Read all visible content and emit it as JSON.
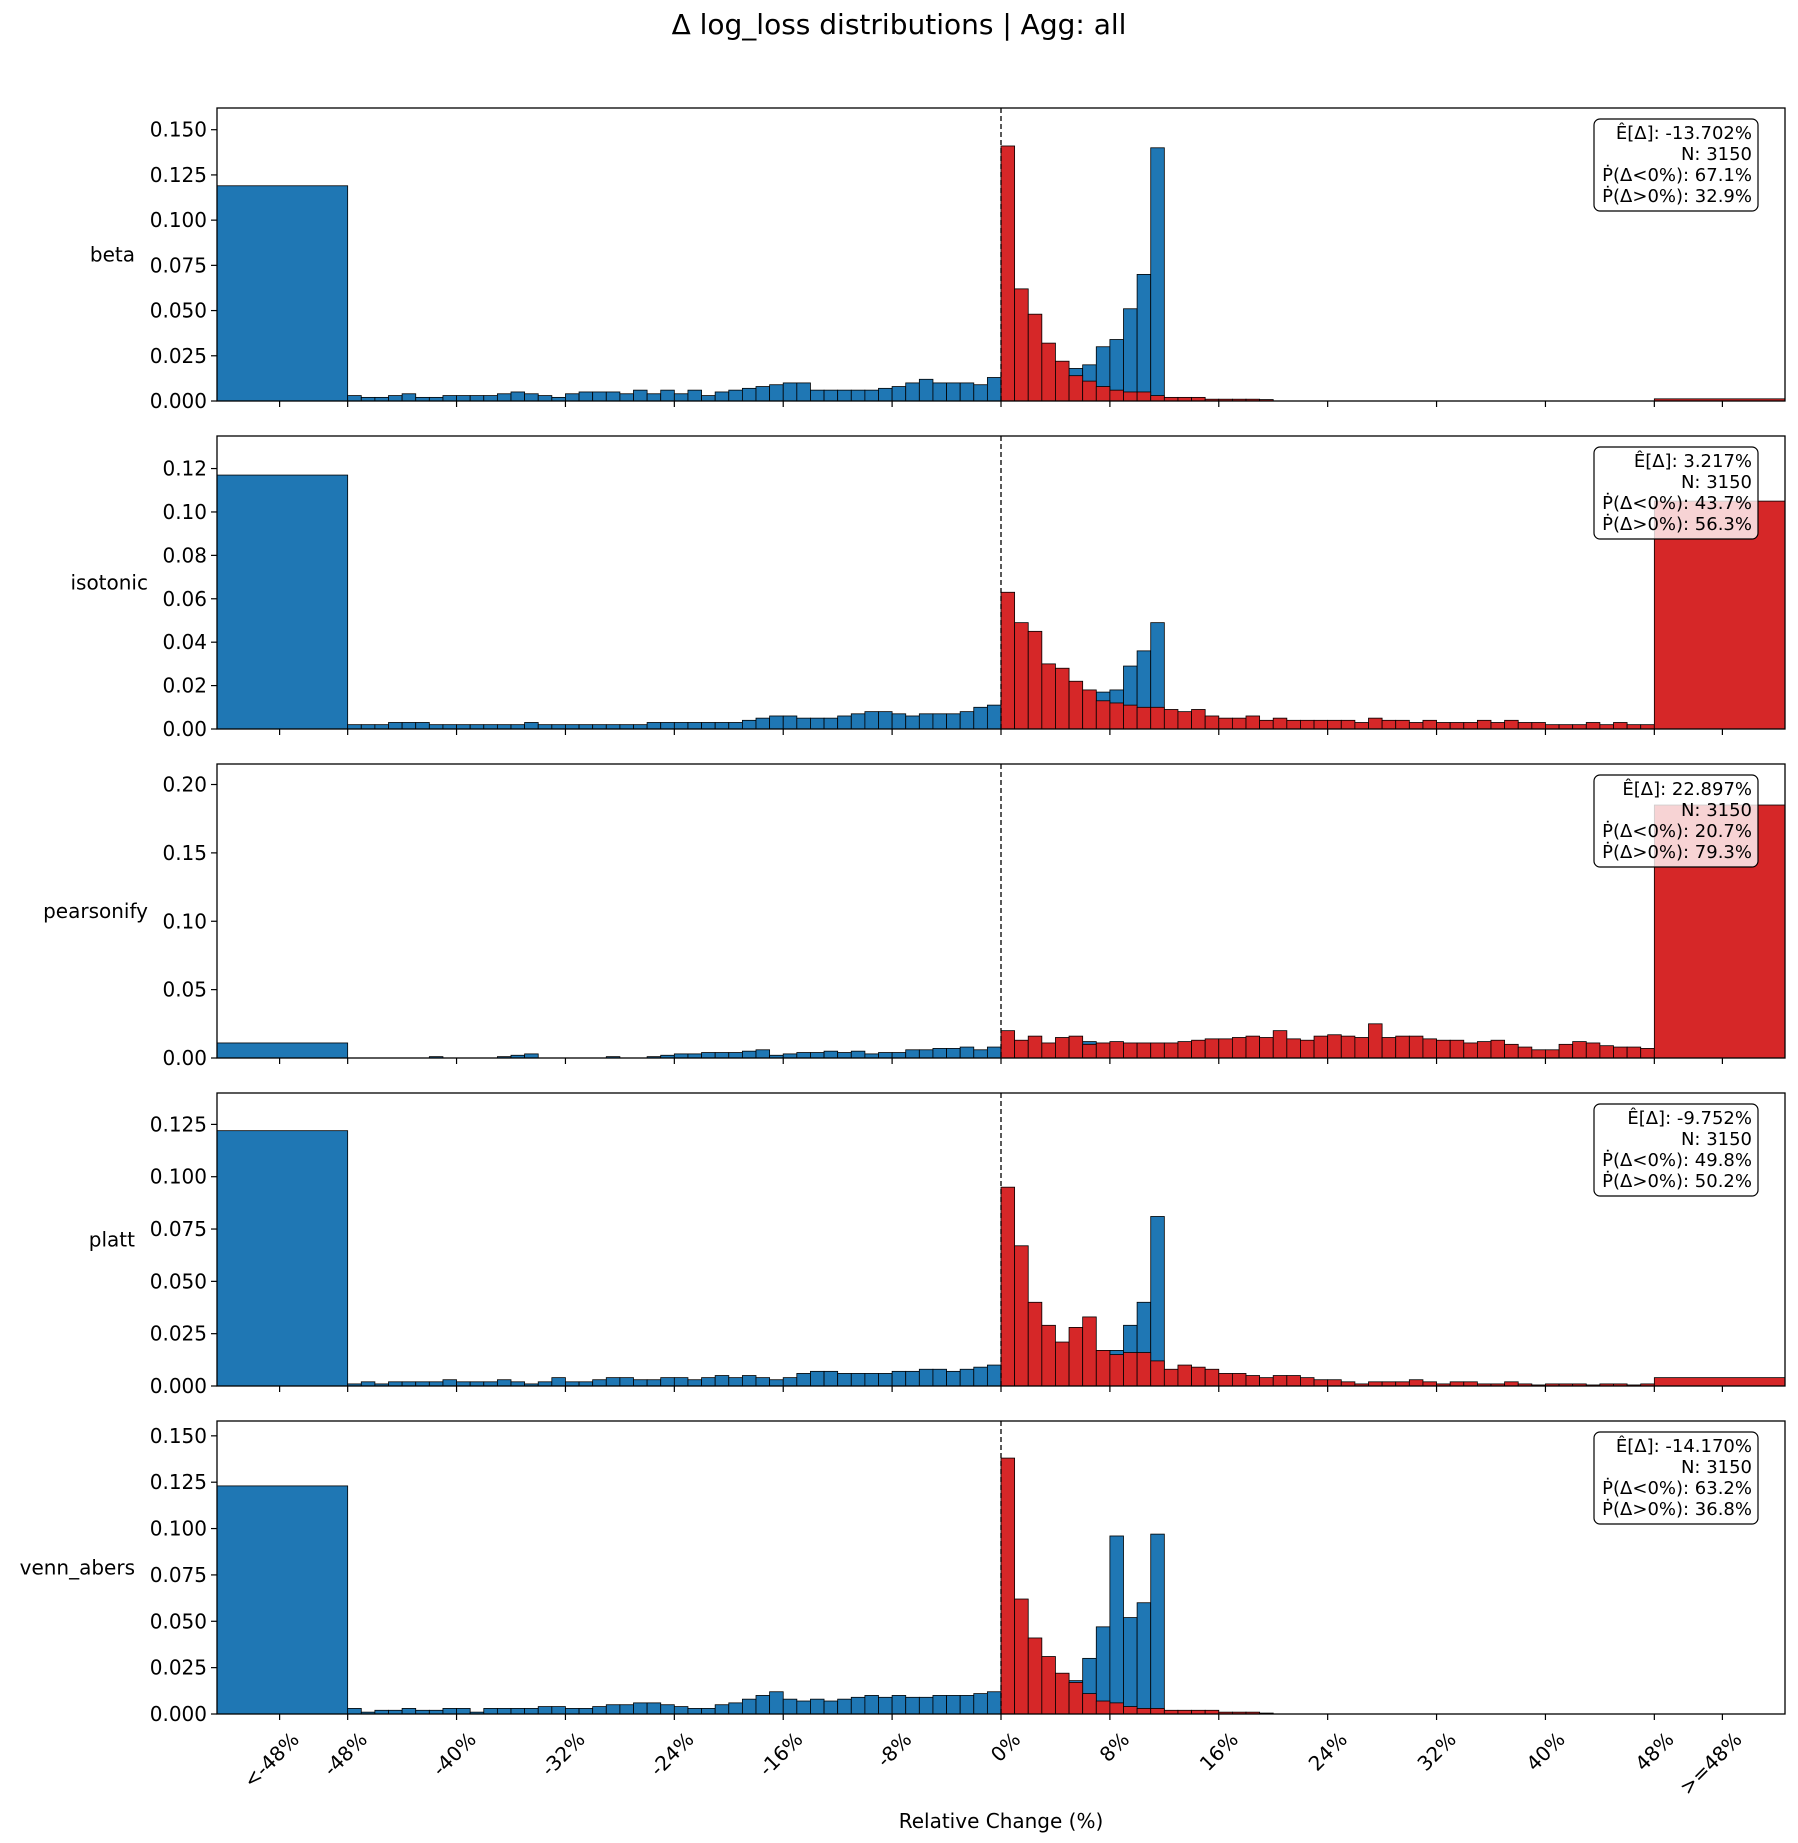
{
  "chart_data": {
    "type": "bar",
    "title": "Δ log_loss distributions | Agg: all",
    "xlabel": "Relative Change (%)",
    "x_tick_labels": [
      "<-48%",
      "-48%",
      "-40%",
      "-32%",
      "-24%",
      "-16%",
      "-8%",
      "0%",
      "8%",
      "16%",
      "24%",
      "32%",
      "40%",
      "48%",
      ">=48%"
    ],
    "x_tick_values": [
      -53,
      -48,
      -40,
      -32,
      -24,
      -16,
      -8,
      0,
      8,
      16,
      24,
      32,
      40,
      48,
      53
    ],
    "xlim": [
      -57.6,
      57.6
    ],
    "bin_width": 1,
    "bin_range": [
      -48,
      48
    ],
    "underflow_bin": [
      -57.6,
      -48
    ],
    "overflow_bin": [
      48,
      57.6
    ],
    "reference_line_x": 0,
    "colors": {
      "negative": "#1f77b4",
      "positive": "#d62728",
      "edge": "#000000"
    },
    "series": [
      {
        "name": "beta",
        "ylim": [
          0,
          0.162
        ],
        "yticks": [
          0.0,
          0.025,
          0.05,
          0.075,
          0.1,
          0.125,
          0.15
        ],
        "ytick_labels": [
          "0.000",
          "0.025",
          "0.050",
          "0.075",
          "0.100",
          "0.125",
          "0.150"
        ],
        "underflow": 0.119,
        "overflow": 0.0012,
        "neg_values": [
          0.003,
          0.002,
          0.002,
          0.003,
          0.004,
          0.002,
          0.002,
          0.003,
          0.003,
          0.003,
          0.003,
          0.004,
          0.005,
          0.004,
          0.003,
          0.002,
          0.004,
          0.005,
          0.005,
          0.005,
          0.004,
          0.006,
          0.004,
          0.006,
          0.004,
          0.006,
          0.003,
          0.005,
          0.006,
          0.007,
          0.008,
          0.009,
          0.01,
          0.01,
          0.006,
          0.006,
          0.006,
          0.006,
          0.006,
          0.007,
          0.008,
          0.01,
          0.012,
          0.01,
          0.01,
          0.01,
          0.009,
          0.013,
          0.01,
          0.016,
          0.017,
          0.017,
          0.017,
          0.018,
          0.02,
          0.03,
          0.034,
          0.051,
          0.07,
          0.14
        ],
        "pos_values": [
          0.141,
          0.062,
          0.048,
          0.032,
          0.022,
          0.014,
          0.011,
          0.008,
          0.006,
          0.005,
          0.005,
          0.003,
          0.002,
          0.002,
          0.002,
          0.001,
          0.001,
          0.001,
          0.001,
          0.0008
        ],
        "stats": {
          "mean": "Ê[Δ]: -13.702%",
          "n": "N: 3150",
          "p_neg": "Ṗ(Δ<0%): 67.1%",
          "p_pos": "Ṗ(Δ>0%): 32.9%"
        }
      },
      {
        "name": "isotonic",
        "ylim": [
          0,
          0.135
        ],
        "yticks": [
          0.0,
          0.02,
          0.04,
          0.06,
          0.08,
          0.1,
          0.12
        ],
        "ytick_labels": [
          "0.00",
          "0.02",
          "0.04",
          "0.06",
          "0.08",
          "0.10",
          "0.12"
        ],
        "underflow": 0.117,
        "overflow": 0.105,
        "neg_values": [
          0.002,
          0.002,
          0.002,
          0.003,
          0.003,
          0.003,
          0.002,
          0.002,
          0.002,
          0.002,
          0.002,
          0.002,
          0.002,
          0.003,
          0.002,
          0.002,
          0.002,
          0.002,
          0.002,
          0.002,
          0.002,
          0.002,
          0.003,
          0.003,
          0.003,
          0.003,
          0.003,
          0.003,
          0.003,
          0.004,
          0.005,
          0.006,
          0.006,
          0.005,
          0.005,
          0.005,
          0.006,
          0.007,
          0.008,
          0.008,
          0.007,
          0.006,
          0.007,
          0.007,
          0.007,
          0.008,
          0.01,
          0.011,
          0.009,
          0.01,
          0.012,
          0.013,
          0.014,
          0.014,
          0.016,
          0.017,
          0.018,
          0.029,
          0.036,
          0.049
        ],
        "pos_values": [
          0.063,
          0.049,
          0.045,
          0.03,
          0.028,
          0.022,
          0.018,
          0.013,
          0.012,
          0.011,
          0.01,
          0.01,
          0.009,
          0.008,
          0.009,
          0.006,
          0.005,
          0.005,
          0.006,
          0.004,
          0.005,
          0.004,
          0.004,
          0.004,
          0.004,
          0.004,
          0.003,
          0.005,
          0.004,
          0.004,
          0.003,
          0.004,
          0.003,
          0.003,
          0.003,
          0.004,
          0.003,
          0.004,
          0.003,
          0.003,
          0.002,
          0.002,
          0.002,
          0.003,
          0.002,
          0.003,
          0.002,
          0.002,
          0.002,
          0.002
        ],
        "stats": {
          "mean": "Ê[Δ]: 3.217%",
          "n": "N: 3150",
          "p_neg": "Ṗ(Δ<0%): 43.7%",
          "p_pos": "Ṗ(Δ>0%): 56.3%"
        }
      },
      {
        "name": "pearsonify",
        "ylim": [
          0,
          0.215
        ],
        "yticks": [
          0.0,
          0.05,
          0.1,
          0.15,
          0.2
        ],
        "ytick_labels": [
          "0.00",
          "0.05",
          "0.10",
          "0.15",
          "0.20"
        ],
        "underflow": 0.011,
        "overflow": 0.185,
        "neg_values": [
          0,
          0,
          0,
          0,
          0,
          0,
          0.001,
          0,
          0,
          0,
          0,
          0.001,
          0.002,
          0.003,
          0,
          0,
          0,
          0,
          0,
          0.001,
          0,
          0,
          0.001,
          0.002,
          0.003,
          0.003,
          0.004,
          0.004,
          0.004,
          0.005,
          0.006,
          0.002,
          0.003,
          0.004,
          0.004,
          0.005,
          0.004,
          0.005,
          0.003,
          0.004,
          0.004,
          0.006,
          0.006,
          0.007,
          0.007,
          0.008,
          0.006,
          0.008,
          0.008,
          0.009,
          0.008,
          0.007,
          0.006,
          0.008,
          0.012,
          0.007,
          0.008,
          0.008,
          0.01,
          0.01
        ],
        "pos_values": [
          0.02,
          0.013,
          0.016,
          0.011,
          0.015,
          0.016,
          0.01,
          0.011,
          0.012,
          0.011,
          0.011,
          0.011,
          0.011,
          0.012,
          0.013,
          0.014,
          0.014,
          0.015,
          0.016,
          0.015,
          0.02,
          0.014,
          0.013,
          0.016,
          0.017,
          0.016,
          0.015,
          0.025,
          0.015,
          0.016,
          0.016,
          0.014,
          0.013,
          0.013,
          0.011,
          0.012,
          0.013,
          0.01,
          0.008,
          0.006,
          0.006,
          0.01,
          0.012,
          0.011,
          0.009,
          0.008,
          0.008,
          0.007,
          0.007,
          0.009
        ],
        "stats": {
          "mean": "Ê[Δ]: 22.897%",
          "n": "N: 3150",
          "p_neg": "Ṗ(Δ<0%): 20.7%",
          "p_pos": "Ṗ(Δ>0%): 79.3%"
        }
      },
      {
        "name": "platt",
        "ylim": [
          0,
          0.14
        ],
        "yticks": [
          0.0,
          0.025,
          0.05,
          0.075,
          0.1,
          0.125
        ],
        "ytick_labels": [
          "0.000",
          "0.025",
          "0.050",
          "0.075",
          "0.100",
          "0.125"
        ],
        "underflow": 0.122,
        "overflow": 0.004,
        "neg_values": [
          0.001,
          0.002,
          0.001,
          0.002,
          0.002,
          0.002,
          0.002,
          0.003,
          0.002,
          0.002,
          0.002,
          0.003,
          0.002,
          0.001,
          0.002,
          0.004,
          0.002,
          0.002,
          0.003,
          0.004,
          0.004,
          0.003,
          0.003,
          0.004,
          0.004,
          0.003,
          0.004,
          0.005,
          0.004,
          0.005,
          0.004,
          0.003,
          0.004,
          0.006,
          0.007,
          0.007,
          0.006,
          0.006,
          0.006,
          0.006,
          0.007,
          0.007,
          0.008,
          0.008,
          0.007,
          0.008,
          0.009,
          0.01,
          0.009,
          0.01,
          0.011,
          0.012,
          0.013,
          0.011,
          0.017,
          0.017,
          0.017,
          0.029,
          0.04,
          0.081
        ],
        "pos_values": [
          0.095,
          0.067,
          0.04,
          0.029,
          0.021,
          0.028,
          0.033,
          0.017,
          0.015,
          0.016,
          0.016,
          0.012,
          0.008,
          0.01,
          0.009,
          0.008,
          0.006,
          0.006,
          0.005,
          0.004,
          0.005,
          0.005,
          0.004,
          0.003,
          0.003,
          0.002,
          0.001,
          0.002,
          0.002,
          0.002,
          0.003,
          0.002,
          0.001,
          0.002,
          0.002,
          0.001,
          0.001,
          0.002,
          0.001,
          0.0005,
          0.001,
          0.001,
          0.001,
          0.0005,
          0.001,
          0.001,
          0.0005,
          0.001,
          0.0005,
          0.0005
        ],
        "stats": {
          "mean": "Ê[Δ]: -9.752%",
          "n": "N: 3150",
          "p_neg": "Ṗ(Δ<0%): 49.8%",
          "p_pos": "Ṗ(Δ>0%): 50.2%"
        }
      },
      {
        "name": "venn_abers",
        "ylim": [
          0,
          0.158
        ],
        "yticks": [
          0.0,
          0.025,
          0.05,
          0.075,
          0.1,
          0.125,
          0.15
        ],
        "ytick_labels": [
          "0.000",
          "0.025",
          "0.050",
          "0.075",
          "0.100",
          "0.125",
          "0.150"
        ],
        "underflow": 0.123,
        "overflow": 0.0,
        "neg_values": [
          0.003,
          0.001,
          0.002,
          0.002,
          0.003,
          0.002,
          0.002,
          0.003,
          0.003,
          0.001,
          0.003,
          0.003,
          0.003,
          0.003,
          0.004,
          0.004,
          0.003,
          0.003,
          0.004,
          0.005,
          0.005,
          0.006,
          0.006,
          0.005,
          0.004,
          0.003,
          0.003,
          0.005,
          0.006,
          0.008,
          0.01,
          0.012,
          0.008,
          0.007,
          0.008,
          0.007,
          0.008,
          0.009,
          0.01,
          0.009,
          0.01,
          0.009,
          0.009,
          0.01,
          0.01,
          0.01,
          0.011,
          0.012,
          0.019,
          0.015,
          0.021,
          0.022,
          0.021,
          0.018,
          0.03,
          0.047,
          0.096,
          0.052,
          0.06,
          0.097
        ],
        "pos_values": [
          0.138,
          0.062,
          0.041,
          0.031,
          0.022,
          0.017,
          0.011,
          0.007,
          0.006,
          0.004,
          0.003,
          0.003,
          0.002,
          0.002,
          0.002,
          0.002,
          0.001,
          0.001,
          0.001,
          0.0005
        ],
        "stats": {
          "mean": "Ê[Δ]: -14.170%",
          "n": "N: 3150",
          "p_neg": "Ṗ(Δ<0%): 63.2%",
          "p_pos": "Ṗ(Δ>0%): 36.8%"
        }
      }
    ]
  }
}
